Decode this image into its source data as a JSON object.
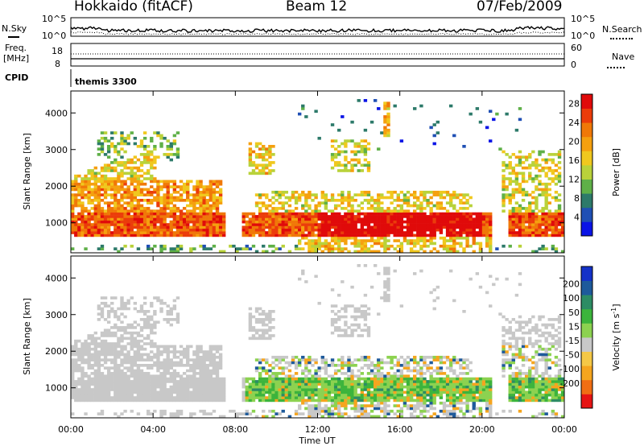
{
  "header": {
    "station": "Hokkaido (fitACF)",
    "beam": "Beam 12",
    "date": "07/Feb/2009"
  },
  "noise_panel": {
    "left_label": "N.Sky",
    "right_label": "N.Search",
    "left_ticks": [
      "10^5",
      "10^0"
    ],
    "right_ticks": [
      "10^5",
      "10^0"
    ]
  },
  "freq_panel": {
    "left_label_1": "Freq.",
    "left_label_2": "[MHz]",
    "right_label": "Nave",
    "left_ticks": [
      "18",
      "8"
    ],
    "right_ticks": [
      "60",
      "0"
    ]
  },
  "cpid_panel": {
    "label": "CPID",
    "value": "themis 3300"
  },
  "chart_data": [
    {
      "type": "heatmap",
      "title": "",
      "xlabel": "Time UT",
      "ylabel": "Slant Range [km]",
      "xlim": [
        0,
        24
      ],
      "ylim": [
        180,
        4600
      ],
      "x_ticks": [
        "00:00",
        "04:00",
        "08:00",
        "12:00",
        "16:00",
        "20:00",
        "00:00"
      ],
      "y_ticks": [
        1000,
        2000,
        3000,
        4000
      ],
      "colorbar": {
        "label": "Power [dB]",
        "ticks": [
          4,
          8,
          12,
          16,
          20,
          24,
          28
        ],
        "range": [
          0,
          30
        ],
        "colors": [
          "#0a14e6",
          "#1f4fb4",
          "#2d7a6a",
          "#5fb048",
          "#b9d23a",
          "#f0c81e",
          "#f5a00f",
          "#f07808",
          "#eb3c0a",
          "#e00a0a"
        ]
      }
    },
    {
      "type": "heatmap",
      "title": "",
      "xlabel": "Time UT",
      "ylabel": "Slant Range [km]",
      "xlim": [
        0,
        24
      ],
      "ylim": [
        180,
        4600
      ],
      "x_ticks": [
        "00:00",
        "04:00",
        "08:00",
        "12:00",
        "16:00",
        "20:00",
        "00:00"
      ],
      "y_ticks": [
        1000,
        2000,
        3000,
        4000
      ],
      "colorbar": {
        "label": "Velocity [m s^-1]",
        "ticks": [
          200,
          100,
          50,
          15,
          -15,
          -50,
          -100,
          -200
        ],
        "range": [
          -250,
          250
        ],
        "colors": [
          "#e61414",
          "#f06e14",
          "#f5a51e",
          "#f5c846",
          "#c8c8c8",
          "#8cd250",
          "#3cb43c",
          "#2d8c64",
          "#1e5a9b",
          "#1432c8"
        ]
      }
    }
  ]
}
